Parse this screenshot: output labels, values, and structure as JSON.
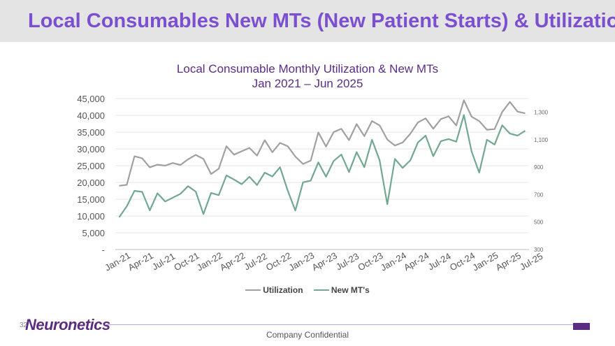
{
  "slide": {
    "title": "Local Consumables New MTs (New Patient Starts) & Utilization",
    "page_number": "32",
    "logo_text": "Neuronetics",
    "footer_text": "Company Confidential"
  },
  "colors": {
    "title": "#7b4fd0",
    "utilization": "#a0a0a0",
    "new_mts": "#72a890",
    "brand": "#5a2d82"
  },
  "chart_data": {
    "type": "line",
    "title": "Local Consumable Monthly Utilization & New MTs",
    "subtitle": "Jan 2021 – Jun 2025",
    "x_tick_labels": [
      "Jan-21",
      "Apr-21",
      "Jul-21",
      "Oct-21",
      "Jan-22",
      "Apr-22",
      "Jul-22",
      "Oct-22",
      "Jan-23",
      "Apr-23",
      "Jul-23",
      "Oct-23",
      "Jan-24",
      "Apr-24",
      "Jul-24",
      "Oct-24",
      "Jan-25",
      "Apr-25",
      "Jul-25"
    ],
    "y_left": {
      "ticks": [
        "45,000",
        "40,000",
        "35,000",
        "30,000",
        "25,000",
        "20,000",
        "15,000",
        "10,000",
        "5,000",
        "-"
      ],
      "range": [
        0,
        45000
      ]
    },
    "y_right": {
      "ticks": [
        "1,300",
        "1,100",
        "900",
        "700",
        "500",
        "300"
      ],
      "range": [
        300,
        1400
      ]
    },
    "series": [
      {
        "name": "Utilization",
        "axis": "left",
        "values": [
          19000,
          19300,
          27800,
          27200,
          24500,
          25300,
          25000,
          25800,
          25200,
          26900,
          28200,
          27000,
          22500,
          24100,
          30800,
          28300,
          29300,
          30300,
          28000,
          32600,
          29000,
          31800,
          30800,
          27700,
          25500,
          26500,
          34900,
          30700,
          35000,
          36000,
          32600,
          37400,
          33800,
          38300,
          37000,
          32800,
          31000,
          31900,
          34500,
          37900,
          39100,
          36000,
          38900,
          39700,
          37000,
          44500,
          39600,
          38300,
          35700,
          35900,
          41000,
          44000,
          41100,
          40600
        ]
      },
      {
        "name": "New MT's",
        "axis": "right",
        "values": [
          535,
          615,
          728,
          720,
          585,
          710,
          650,
          678,
          706,
          762,
          722,
          558,
          712,
          696,
          840,
          810,
          776,
          830,
          770,
          860,
          832,
          900,
          730,
          584,
          790,
          802,
          935,
          830,
          945,
          992,
          865,
          1010,
          900,
          1100,
          950,
          630,
          960,
          895,
          950,
          1080,
          1130,
          980,
          1090,
          1105,
          1086,
          1280,
          1015,
          860,
          1100,
          1065,
          1205,
          1145,
          1130,
          1165
        ]
      }
    ],
    "legend_position": "bottom",
    "grid": true
  }
}
